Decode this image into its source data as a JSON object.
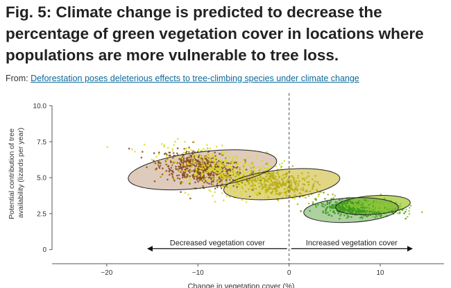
{
  "figure": {
    "title": "Fig. 5: Climate change is predicted to decrease the percentage of green vegetation cover in locations where populations are more vulnerable to tree loss.",
    "from_label": "From:",
    "source_link": "Deforestation poses deleterious effects to tree-climbing species under climate change"
  },
  "colors": {
    "link": "#0b6a9a",
    "brown_points": "#8a4a1e",
    "olive_points": "#b8ae1a",
    "yellow_points": "#d8dc2a",
    "green_points": "#3d9a1e",
    "light_green_points": "#8cc63a"
  },
  "chart_data": {
    "type": "scatter",
    "xlabel": "Change in vegetation cover (%)",
    "ylabel_lines": [
      "Potential contribution of tree",
      "availability (lizards per year)"
    ],
    "xlim": [
      -26,
      17
    ],
    "ylim": [
      -0.4,
      10.6
    ],
    "x_ticks": [
      -20,
      -10,
      0,
      10
    ],
    "x_tick_labels": [
      "−20",
      "−10",
      "0",
      "10"
    ],
    "y_ticks": [
      0,
      2.5,
      5.0,
      7.5,
      10.0
    ],
    "y_tick_labels": [
      "0",
      "2.5",
      "5.0",
      "7.5",
      "10.0"
    ],
    "vertical_reference_x": 0,
    "annotations": [
      {
        "text": "Decreased vegetation cover",
        "direction": "left",
        "arrow_from": 0,
        "arrow_to": -15.5,
        "y": 0.5
      },
      {
        "text": "Increased vegetation cover",
        "direction": "right",
        "arrow_from": 0,
        "arrow_to": 13.5,
        "y": 0.5
      }
    ],
    "groups": [
      {
        "color": "#8a4a1e",
        "center": [
          -9.5,
          5.6
        ],
        "spread": [
          4.2,
          0.9
        ],
        "slope": -0.1,
        "count": 650
      },
      {
        "color": "#d8dc2a",
        "center": [
          -6.5,
          5.4
        ],
        "spread": [
          6.5,
          1.2
        ],
        "slope": -0.12,
        "count": 600
      },
      {
        "color": "#b8ae1a",
        "center": [
          -1.5,
          4.6
        ],
        "spread": [
          4.0,
          0.8
        ],
        "slope": -0.1,
        "count": 350
      },
      {
        "color": "#3d9a1e",
        "center": [
          7.5,
          2.9
        ],
        "spread": [
          3.4,
          0.45
        ],
        "slope": -0.03,
        "count": 550
      },
      {
        "color": "#8cc63a",
        "center": [
          9.5,
          3.0
        ],
        "spread": [
          2.8,
          0.4
        ],
        "slope": -0.03,
        "count": 300
      }
    ],
    "ellipses": [
      {
        "cx": -9.5,
        "cy": 5.55,
        "rx": 8.2,
        "ry": 1.25,
        "angle": -7,
        "fill": "#b98c6e",
        "opacity": 0.45
      },
      {
        "cx": -0.8,
        "cy": 4.55,
        "rx": 6.4,
        "ry": 1.0,
        "angle": -6,
        "fill": "#c9b522",
        "opacity": 0.55
      },
      {
        "cx": 9.2,
        "cy": 3.1,
        "rx": 4.1,
        "ry": 0.65,
        "angle": -4,
        "fill": "#a0c82a",
        "opacity": 0.7
      },
      {
        "cx": 6.8,
        "cy": 2.75,
        "rx": 5.2,
        "ry": 0.85,
        "angle": -3,
        "fill": "#4a9a2a",
        "opacity": 0.45
      }
    ]
  }
}
